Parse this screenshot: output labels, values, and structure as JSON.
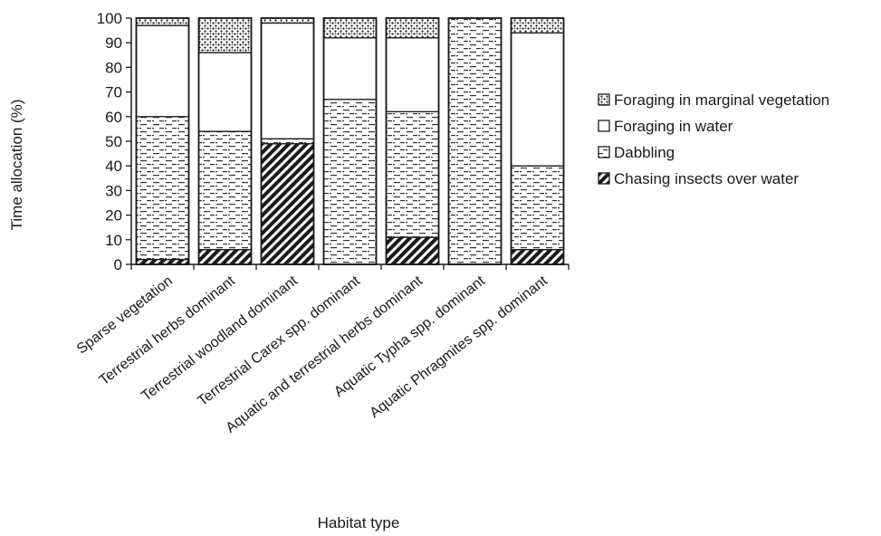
{
  "chart_data": {
    "type": "bar",
    "stacked": true,
    "xlabel": "Habitat type",
    "ylabel": "Time allocation (%)",
    "ylim": [
      0,
      100
    ],
    "yticks": [
      0,
      10,
      20,
      30,
      40,
      50,
      60,
      70,
      80,
      90,
      100
    ],
    "grid": false,
    "legend_position": "right",
    "categories": [
      "Sparse vegetation",
      "Terrestrial herbs dominant",
      "Terrestrial woodland dominant",
      "Terrestrial Carex spp. dominant",
      "Aquatic and terrestrial herbs dominant",
      "Aquatic Typha spp. dominant",
      "Aquatic Phragmites spp. dominant"
    ],
    "series": [
      {
        "name": "Chasing insects over water",
        "pattern": "diagonal",
        "values": [
          2,
          6,
          49,
          0,
          11,
          0,
          6
        ]
      },
      {
        "name": "Dabbling",
        "pattern": "dashed",
        "values": [
          58,
          48,
          2,
          67,
          51,
          100,
          34
        ]
      },
      {
        "name": "Foraging in water",
        "pattern": "blank",
        "values": [
          37,
          32,
          47,
          25,
          30,
          0,
          54
        ]
      },
      {
        "name": "Foraging in marginal vegetation",
        "pattern": "dotted",
        "values": [
          3,
          14,
          2,
          8,
          8,
          0,
          6
        ]
      }
    ]
  }
}
